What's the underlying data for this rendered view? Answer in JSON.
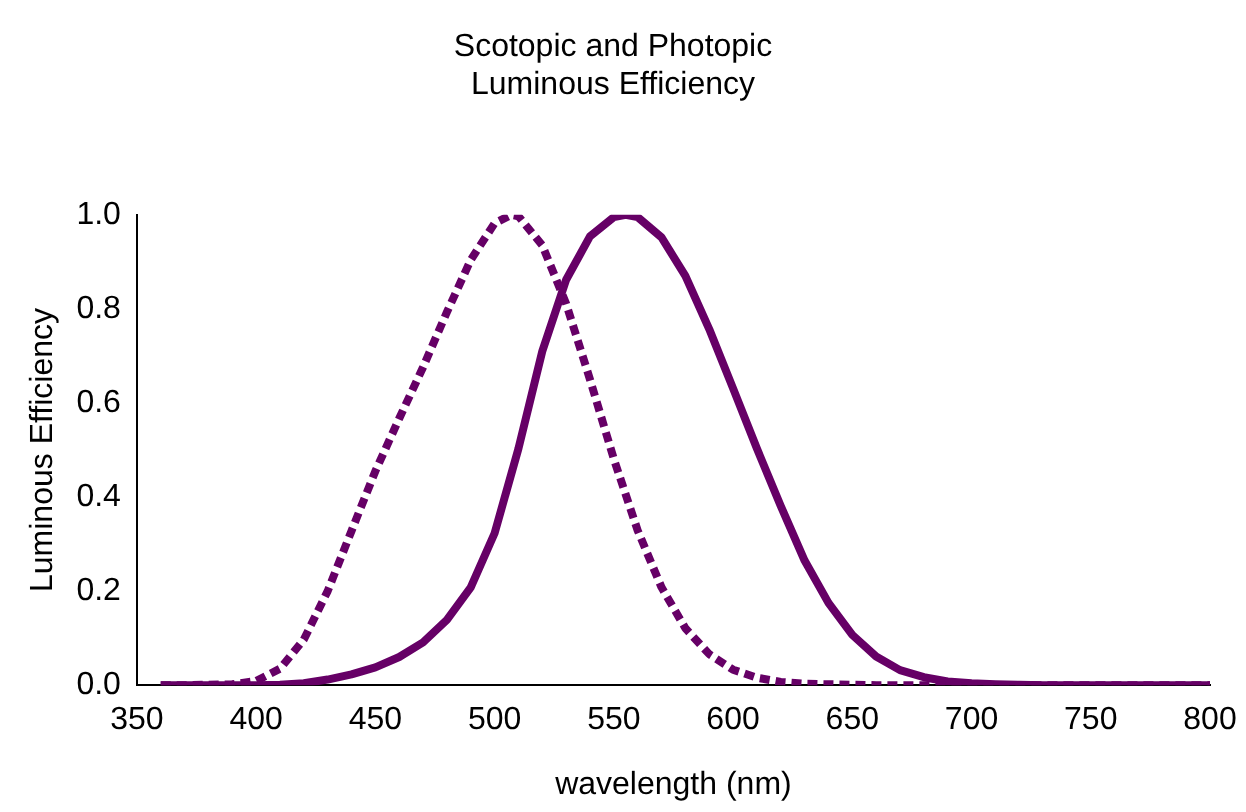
{
  "chart_data": {
    "type": "line",
    "title": "Scotopic and Photopic\nLuminous Efficiency",
    "xlabel": "wavelength (nm)",
    "ylabel": "Luminous Efficiency",
    "xlim": [
      350,
      800
    ],
    "xticks": [
      350,
      400,
      450,
      500,
      550,
      600,
      650,
      700,
      750,
      800
    ],
    "ylim": [
      0,
      1
    ],
    "yticks": [
      {
        "value": 0,
        "label": "0.0"
      },
      {
        "value": 0.2,
        "label": "0.2"
      },
      {
        "value": 0.4,
        "label": "0.4"
      },
      {
        "value": 0.6,
        "label": "0.6"
      },
      {
        "value": 0.8,
        "label": "0.8"
      },
      {
        "value": 1,
        "label": "1.0"
      }
    ],
    "grid": false,
    "legend": false,
    "marker": "none",
    "series": [
      {
        "color": "#660066",
        "line_style": "dashed",
        "x": [
          360,
          370,
          380,
          390,
          400,
          410,
          420,
          430,
          440,
          450,
          460,
          470,
          480,
          490,
          500,
          507,
          510,
          520,
          530,
          540,
          550,
          560,
          570,
          580,
          590,
          600,
          610,
          620,
          630,
          640,
          650,
          660,
          670,
          680,
          690,
          700,
          710,
          720,
          730,
          740,
          750,
          760,
          770,
          780,
          790,
          800
        ],
        "values": [
          0,
          0,
          0.001,
          0.002,
          0.009,
          0.035,
          0.097,
          0.2,
          0.328,
          0.455,
          0.567,
          0.676,
          0.793,
          0.904,
          0.982,
          1.0,
          0.997,
          0.935,
          0.811,
          0.65,
          0.481,
          0.329,
          0.208,
          0.121,
          0.066,
          0.033,
          0.016,
          0.007,
          0.003,
          0.002,
          0.001,
          0,
          0,
          0,
          0,
          0,
          0,
          0,
          0,
          0,
          0,
          0,
          0,
          0,
          0,
          0
        ]
      },
      {
        "color": "#660066",
        "line_style": "solid",
        "x": [
          360,
          370,
          380,
          390,
          400,
          410,
          420,
          430,
          440,
          450,
          460,
          470,
          480,
          490,
          500,
          510,
          520,
          530,
          540,
          550,
          555,
          560,
          570,
          580,
          590,
          600,
          610,
          620,
          630,
          640,
          650,
          660,
          670,
          680,
          690,
          700,
          710,
          720,
          730,
          740,
          750,
          760,
          770,
          780,
          790,
          800
        ],
        "values": [
          0,
          0,
          0,
          0,
          0,
          0.001,
          0.004,
          0.012,
          0.023,
          0.038,
          0.06,
          0.091,
          0.139,
          0.208,
          0.323,
          0.503,
          0.71,
          0.862,
          0.954,
          0.995,
          1.0,
          0.995,
          0.952,
          0.87,
          0.757,
          0.631,
          0.503,
          0.381,
          0.265,
          0.175,
          0.107,
          0.061,
          0.032,
          0.017,
          0.008,
          0.004,
          0.002,
          0.001,
          0,
          0,
          0,
          0,
          0,
          0,
          0,
          0
        ]
      }
    ]
  }
}
